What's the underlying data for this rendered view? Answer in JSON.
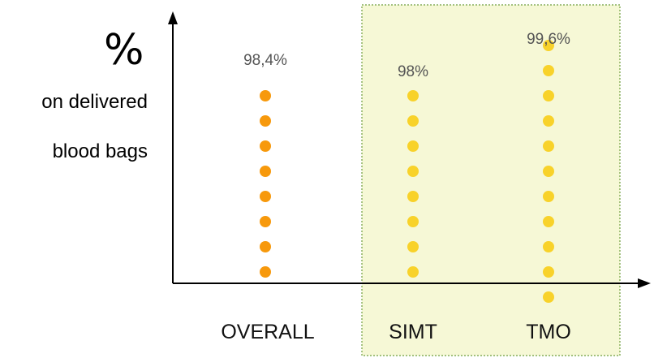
{
  "chart_data": {
    "type": "scatter",
    "ylabel_symbol": "%",
    "ylabel_line1": "on delivered",
    "ylabel_line2": "blood bags",
    "categories": [
      "OVERALL",
      "SIMT",
      "TMO"
    ],
    "values": [
      98.4,
      98,
      99.6
    ],
    "value_labels": [
      "98,4%",
      "98%",
      "99,6%"
    ],
    "point_counts": [
      8,
      8,
      11
    ],
    "point_colors": [
      "#f7990c",
      "#f8d22a",
      "#f8d22a"
    ],
    "highlight": {
      "categories": [
        "SIMT",
        "TMO"
      ],
      "fill": "#f6f8d6",
      "border": "#6e9e3e"
    },
    "grid": false
  }
}
